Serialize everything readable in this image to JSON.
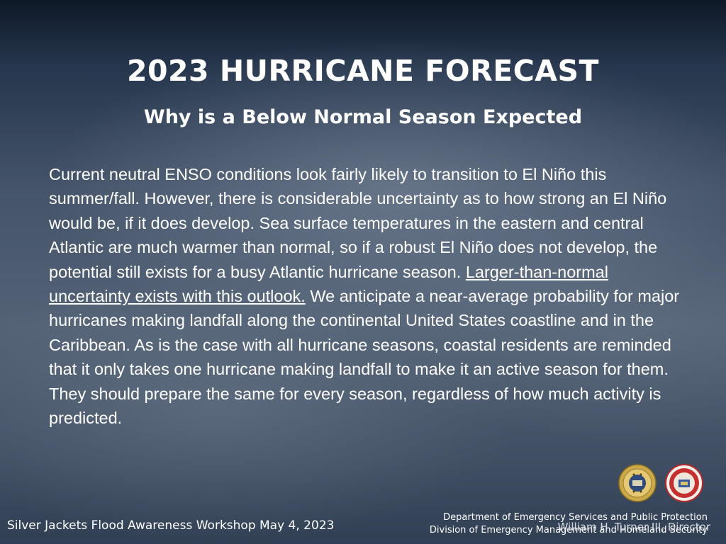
{
  "slide": {
    "title": "2023 HURRICANE FORECAST",
    "subtitle": "Why is a Below Normal Season Expected",
    "body_part1": "Current neutral ENSO conditions look fairly likely to transition to El Niño this summer/fall. However, there is considerable uncertainty as to how strong an El Niño would be, if it does develop. Sea surface temperatures in the eastern and central Atlantic are much warmer than normal, so if a robust El Niño does not develop, the potential still exists for a busy Atlantic hurricane season. ",
    "body_underlined": "Larger-than-normal uncertainty exists with this outlook.",
    "body_part2": " We anticipate a near-average probability for major hurricanes making landfall along the continental United States coastline and in the Caribbean. As is the case with all hurricane seasons, coastal residents are reminded that it only takes one hurricane making landfall to make it an active season for them. They should prepare the same for every season, regardless of how much activity is predicted."
  },
  "footer": {
    "workshop": "Silver Jackets Flood Awareness Workshop May 4, 2023",
    "dept_line1": "Department of Emergency Services and Public Protection",
    "dept_line2": "Division of Emergency Management and Homeland Security",
    "director": "William H. Turner III, Director"
  },
  "seals": {
    "seal1_icon": "state-seal-icon",
    "seal2_icon": "emergency-management-seal-icon"
  }
}
